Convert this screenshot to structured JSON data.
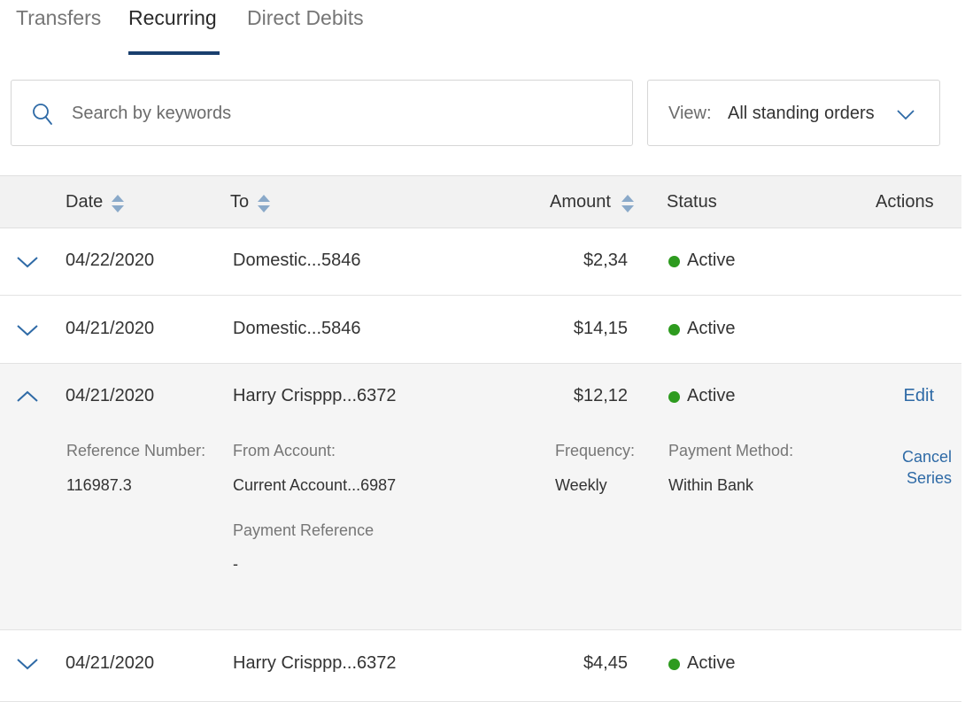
{
  "tabs": [
    {
      "label": "Transfers",
      "active": false
    },
    {
      "label": "Recurring",
      "active": true
    },
    {
      "label": "Direct Debits",
      "active": false
    }
  ],
  "search": {
    "placeholder": "Search by keywords",
    "value": ""
  },
  "view": {
    "label": "View:",
    "value": "All standing orders"
  },
  "table": {
    "headers": {
      "date": "Date",
      "to": "To",
      "amount": "Amount",
      "status": "Status",
      "actions": "Actions"
    },
    "rows": [
      {
        "date": "04/22/2020",
        "to": "Domestic...5846",
        "amount": "$2,34",
        "status": "Active",
        "expanded": false
      },
      {
        "date": "04/21/2020",
        "to": "Domestic...5846",
        "amount": "$14,15",
        "status": "Active",
        "expanded": false
      },
      {
        "date": "04/21/2020",
        "to": "Harry Crisppp...6372",
        "amount": "$12,12",
        "status": "Active",
        "expanded": true,
        "edit_label": "Edit",
        "cancel_label_1": "Cancel",
        "cancel_label_2": "Series",
        "details": {
          "reference_number_label": "Reference Number:",
          "reference_number": "116987.3",
          "from_account_label": "From Account:",
          "from_account": "Current Account...6987",
          "frequency_label": "Frequency:",
          "frequency": "Weekly",
          "payment_method_label": "Payment Method:",
          "payment_method": "Within Bank",
          "payment_reference_label": "Payment Reference",
          "payment_reference": "-"
        }
      },
      {
        "date": "04/21/2020",
        "to": "Harry Crisppp...6372",
        "amount": "$4,45",
        "status": "Active",
        "expanded": false
      }
    ]
  },
  "colors": {
    "accent": "#1a3f6e",
    "link": "#2e6aa6",
    "status_active": "#2e9b1f"
  },
  "icons": {
    "search": "search-icon",
    "dropdown": "chevron-down-icon",
    "sort": "sort-icon",
    "expand": "chevron-down-icon",
    "collapse": "chevron-up-icon"
  }
}
